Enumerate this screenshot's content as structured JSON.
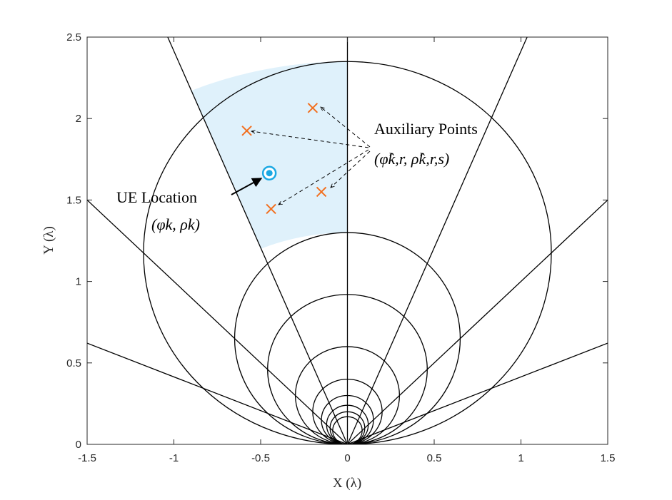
{
  "chart_data": {
    "type": "scatter",
    "xlabel": "X (λ)",
    "ylabel": "Y (λ)",
    "xlim": [
      -1.5,
      1.5
    ],
    "ylim": [
      0,
      2.5
    ],
    "x_ticks": [
      -1.5,
      -1,
      -0.5,
      0,
      0.5,
      1,
      1.5
    ],
    "y_ticks": [
      0,
      0.5,
      1,
      1.5,
      2,
      2.5
    ],
    "x_tick_labels": [
      "-1.5",
      "-1",
      "-0.5",
      "0",
      "0.5",
      "1",
      "1.5"
    ],
    "y_tick_labels": [
      "0",
      "0.5",
      "1",
      "1.5",
      "2",
      "2.5"
    ],
    "grid": false,
    "rays_angle_deg": [
      22.5,
      45,
      67.5,
      90,
      112.5,
      135,
      157.5
    ],
    "circle_radii": [
      0.085,
      0.1,
      0.12,
      0.15,
      0.2,
      0.3,
      0.46,
      0.65,
      1.175
    ],
    "highlight_region": {
      "color": "#dff1fb",
      "angle_range_deg": [
        90,
        112.5
      ],
      "rho_range": [
        1.3,
        2.35
      ]
    },
    "ue_location": {
      "x": -0.45,
      "y": 1.665,
      "color": "#1ba8e3"
    },
    "auxiliary_points": {
      "color": "#f26f1e",
      "points": [
        {
          "x": -0.2,
          "y": 2.065
        },
        {
          "x": -0.58,
          "y": 1.925
        },
        {
          "x": -0.15,
          "y": 1.55
        },
        {
          "x": -0.44,
          "y": 1.445
        }
      ]
    },
    "annotations": {
      "ue_title": "UE Location",
      "ue_math": "(φk, ρk)",
      "aux_title": "Auxiliary Points",
      "aux_math": "(φ̂k,r, ρ̂k,r,s)"
    }
  }
}
